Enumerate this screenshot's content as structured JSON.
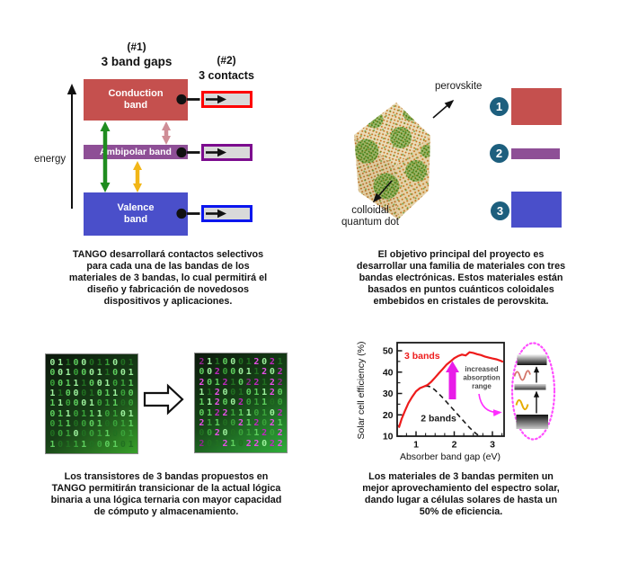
{
  "figure": {
    "q1": {
      "title_num": "(#1)",
      "title": "3 band gaps",
      "contacts_num": "(#2)",
      "contacts_title": "3 contacts",
      "energy_label": "energy",
      "bands": [
        {
          "label": "Conduction\nband"
        },
        {
          "label": "Ambipolar band"
        },
        {
          "label": "Valence\nband"
        }
      ],
      "caption": "TANGO desarrollará contactos selectivos para cada una de las bandas de los materiales de 3 bandas, lo cual permitirá el diseño y fabricación de novedosos dispositivos y aplicaciones."
    },
    "q2": {
      "perovskite_label": "perovskite",
      "quantum_dot_label": "colloidal\nquantum dot",
      "legend": [
        {
          "number": "1"
        },
        {
          "number": "2"
        },
        {
          "number": "3"
        }
      ],
      "caption": "El objetivo principal del proyecto es desarrollar una familia de materiales con tres bandas electrónicas. Estos materiales están basados en puntos cuánticos coloidales embebidos en cristales de perovskita."
    },
    "q3": {
      "binary_rows": [
        "01100011001",
        "00100011001",
        "00111001011",
        "11000101100",
        "11000101100",
        "01101110101",
        "01100010011",
        "00100011001",
        "10111000101"
      ],
      "ternary_rows": [
        "21100012021",
        "00200011202",
        "20121022122",
        "11200101120",
        "11200201100",
        "01221110102",
        "21100212021",
        "00200011202",
        "20121022022"
      ],
      "green_shades": [
        "#9cf09c",
        "#5ecf5e",
        "#3aa33a",
        "#217021"
      ],
      "magenta_shades": [
        "#e84fe8",
        "#bf27bf",
        "#92258f"
      ],
      "caption": "Los transistores de 3 bandas propuestos en TANGO permitirán transicionar de la actual lógica binaria a una lógica ternaria con mayor capacidad de cómputo y almacenamiento."
    },
    "q4": {
      "caption": "Los materiales de 3 bandas permiten un mejor aprovechamiento del espectro solar, dando lugar a células solares de hasta un 50% de eficiencia."
    }
  },
  "colors": {
    "band_red": "#c5504e",
    "band_purple": "#8e4f96",
    "band_blue": "#4a4fca",
    "contact_fill": "#d9d9d9",
    "contact_red": "#fe0000",
    "contact_purple": "#7c0c8e",
    "contact_blue": "#0b16ee",
    "arrow_green": "#1f8c1f",
    "arrow_yellow": "#f2b617",
    "arrow_pink": "#cf8d96",
    "number_circle": "#1d5f7e",
    "accent_magenta": "#e81ce8",
    "ellipse_pink": "#ff4dff",
    "chart_red": "#ee1b1b"
  },
  "chart_data": {
    "type": "line",
    "title": "",
    "xlabel": "Absorber band gap (eV)",
    "ylabel": "Solar cell efficiency (%)",
    "xlim": [
      0.5,
      3.3
    ],
    "ylim": [
      10,
      50
    ],
    "xticks": [
      1,
      2,
      3
    ],
    "yticks": [
      10,
      20,
      30,
      40,
      50
    ],
    "grid": false,
    "legend_position": "inline",
    "series": [
      {
        "name": "2 bands",
        "color": "#1a1a1a",
        "style": "dashed",
        "label_pos": {
          "x": 1.59,
          "y": 17.0
        },
        "x": [
          0.55,
          0.62,
          0.7,
          0.8,
          0.9,
          1.0,
          1.1,
          1.2,
          1.3,
          1.4,
          1.5,
          1.6,
          1.7,
          1.8,
          1.9,
          2.0,
          2.1,
          2.2,
          2.3,
          2.4,
          2.5,
          2.6,
          2.68
        ],
        "y": [
          14,
          18,
          21.5,
          25.5,
          28.5,
          31,
          32.5,
          33.3,
          33.5,
          33,
          31.5,
          29.8,
          28,
          26,
          24,
          22,
          20,
          18,
          16,
          14,
          12.3,
          10.8,
          10
        ]
      },
      {
        "name": "3 bands",
        "color": "#ee1b1b",
        "style": "solid",
        "label_pos": {
          "x": 1.16,
          "y": 46.2
        },
        "x": [
          0.55,
          0.62,
          0.7,
          0.8,
          0.9,
          1.0,
          1.1,
          1.2,
          1.3,
          1.4,
          1.5,
          1.6,
          1.7,
          1.8,
          1.9,
          2.0,
          2.1,
          2.2,
          2.3,
          2.4,
          2.5,
          2.6,
          2.7,
          2.8,
          2.9,
          3.0,
          3.1,
          3.2,
          3.28
        ],
        "y": [
          14,
          18,
          21.5,
          25.5,
          28.5,
          31,
          32.5,
          33.2,
          34,
          35.5,
          37.5,
          39.5,
          41.5,
          43.5,
          45,
          46.5,
          47.5,
          48.2,
          47.8,
          49.3,
          49,
          48.4,
          48,
          47.3,
          46.8,
          46.4,
          46,
          45.4,
          44.8
        ]
      }
    ],
    "annotation": {
      "text": "increased\nabsorption\nrange"
    }
  }
}
